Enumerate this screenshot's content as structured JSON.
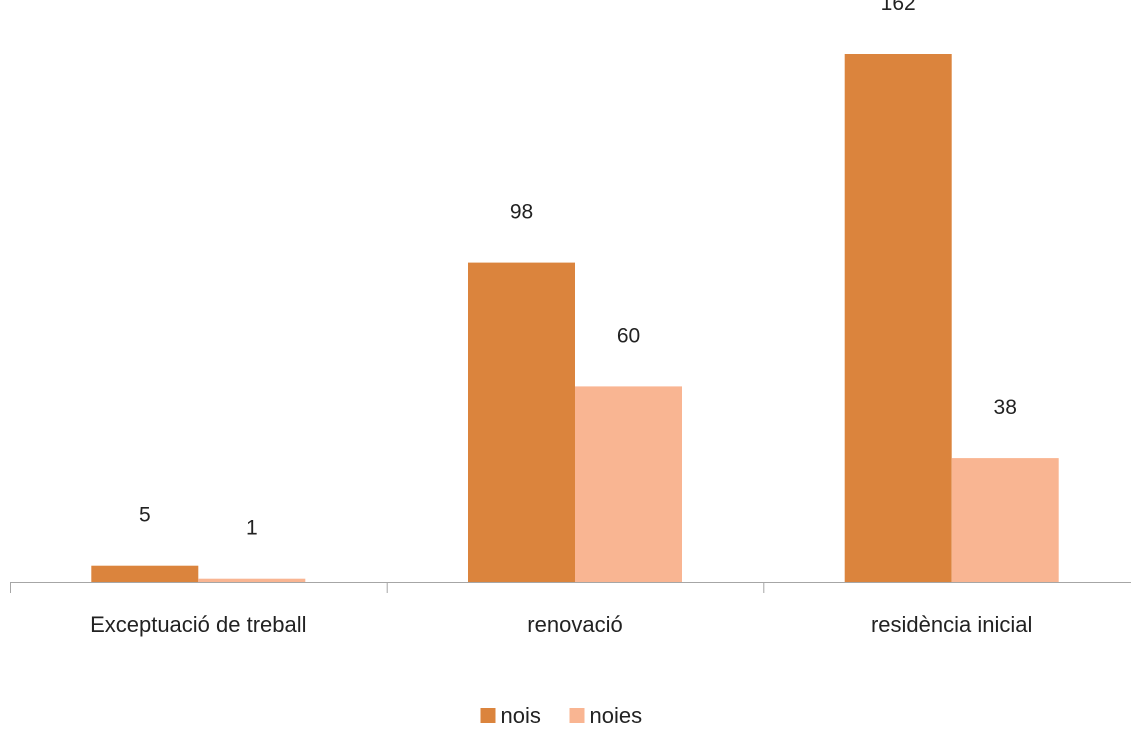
{
  "chart_data": {
    "type": "bar",
    "categories": [
      "Exceptuació de treball",
      "renovació",
      "residència inicial"
    ],
    "series": [
      {
        "name": "nois",
        "values": [
          5,
          98,
          162
        ],
        "color": "#DB843D"
      },
      {
        "name": "noies",
        "values": [
          1,
          60,
          38
        ],
        "color": "#F9B592"
      }
    ],
    "title": "",
    "xlabel": "",
    "ylabel": "",
    "ylim": [
      0,
      162
    ],
    "grid": false,
    "legend": "bottom-center",
    "axis_color": "#A6A6A6"
  }
}
